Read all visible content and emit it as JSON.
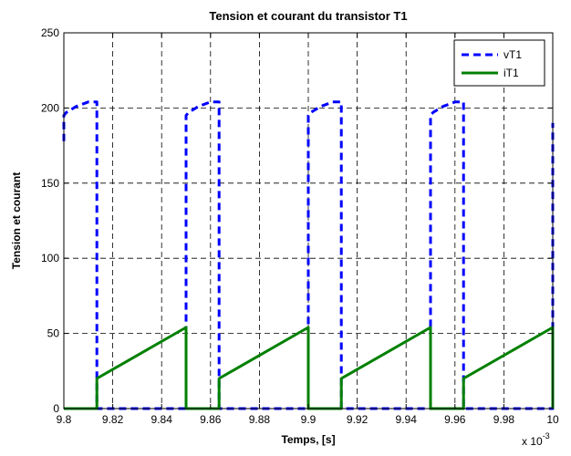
{
  "chart_data": {
    "type": "line",
    "title": "Tension et courant du transistor T1",
    "xlabel": "Temps, [s]",
    "ylabel": "Tension et courant",
    "x_multiplier_label": "x 10",
    "x_multiplier_exponent": "-3",
    "xlim": [
      9.8,
      10
    ],
    "ylim": [
      0,
      250
    ],
    "xticks": [
      "9.8",
      "9.82",
      "9.84",
      "9.86",
      "9.88",
      "9.9",
      "9.92",
      "9.94",
      "9.96",
      "9.98",
      "10"
    ],
    "yticks": [
      "0",
      "50",
      "100",
      "150",
      "200",
      "250"
    ],
    "grid": true,
    "legend_position": "top-right",
    "series": [
      {
        "name": "vT1",
        "color": "#0000ff",
        "style": "dashed",
        "x": [
          9.8,
          9.8,
          9.801,
          9.805,
          9.81,
          9.8135,
          9.8135,
          9.85,
          9.85,
          9.851,
          9.855,
          9.86,
          9.8635,
          9.8635,
          9.9,
          9.9,
          9.901,
          9.905,
          9.91,
          9.9135,
          9.9135,
          9.95,
          9.95,
          9.951,
          9.955,
          9.96,
          9.9635,
          9.9635,
          10.0,
          10.0
        ],
        "y": [
          178,
          195,
          197,
          201,
          204,
          204,
          0,
          0,
          195,
          197,
          201,
          204,
          204,
          0,
          0,
          195,
          197,
          201,
          204,
          204,
          0,
          0,
          195,
          197,
          201,
          204,
          204,
          0,
          0,
          190
        ]
      },
      {
        "name": "iT1",
        "color": "#008000",
        "style": "solid",
        "x": [
          9.8,
          9.8135,
          9.8135,
          9.85,
          9.85,
          9.8635,
          9.8635,
          9.9,
          9.9,
          9.9135,
          9.9135,
          9.95,
          9.95,
          9.9635,
          9.9635,
          10.0,
          10.0
        ],
        "y": [
          0,
          0,
          20,
          54,
          0,
          0,
          20,
          54,
          0,
          0,
          20,
          54,
          0,
          0,
          20,
          54,
          0
        ]
      }
    ]
  }
}
